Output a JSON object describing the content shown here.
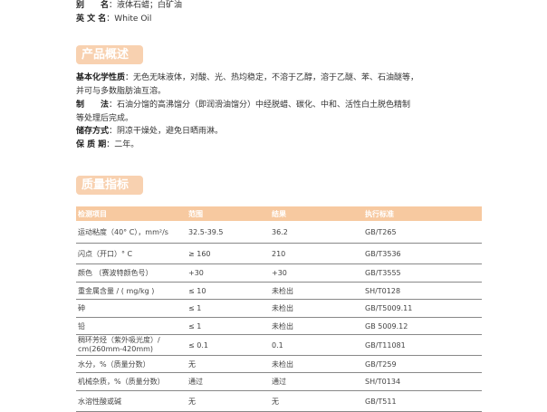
{
  "info": {
    "alias_label": "别　　名",
    "alias": "液体石蜡；白矿油",
    "en_label": "英 文 名",
    "en": "White Oil"
  },
  "overview": {
    "title": "产品概述",
    "props_label": "基本化学性质",
    "props": "无色无味液体，对酸、光、热均稳定，不溶于乙醇，溶于乙醚、苯、石油醚等，",
    "props2": "并可与多数脂肪油互溶。",
    "method_label": "制　　法",
    "method": "石油分馏的高沸馏分（即润滑油馏分）中经脱蜡、碳化、中和、活性白土脱色精制",
    "method2": "等处理后完成。",
    "storage_label": "储存方式",
    "storage": "阴凉干燥处，避免日晒雨淋。",
    "shelf_label": "保 质 期",
    "shelf": "二年。"
  },
  "quality": {
    "title": "质量指标",
    "headers": [
      "检测项目",
      "范围",
      "结果",
      "执行标准"
    ],
    "rows": [
      [
        "运动粘度（40° C），mm²/s",
        "32.5-39.5",
        "36.2",
        "GB/T265"
      ],
      [
        "闪点（开口）° C",
        "≥ 160",
        "210",
        "GB/T3536"
      ],
      [
        "颜色 （赛波特颜色号）",
        "+30",
        "+30",
        "GB/T3555"
      ],
      [
        "重金属含量 / ( mg/kg )",
        "≤ 10",
        "未检出",
        "SH/T0128"
      ],
      [
        "砷",
        "≤ 1",
        "未检出",
        "GB/T5009.11"
      ],
      [
        "铅",
        "≤ 1",
        "未检出",
        "GB 5009.12"
      ],
      [
        "稠环芳烃（紫外吸光度）/ cm(260mm-420mm)",
        "≤ 0.1",
        "0.1",
        "GB/T11081"
      ],
      [
        "水分，%（质量分数）",
        "无",
        "未检出",
        "GB/T259"
      ],
      [
        "机械杂质，%（质量分数）",
        "通过",
        "通过",
        "SH/T0134"
      ],
      [
        "水溶性酸或碱",
        "无",
        "无",
        "GB/T511"
      ]
    ]
  }
}
